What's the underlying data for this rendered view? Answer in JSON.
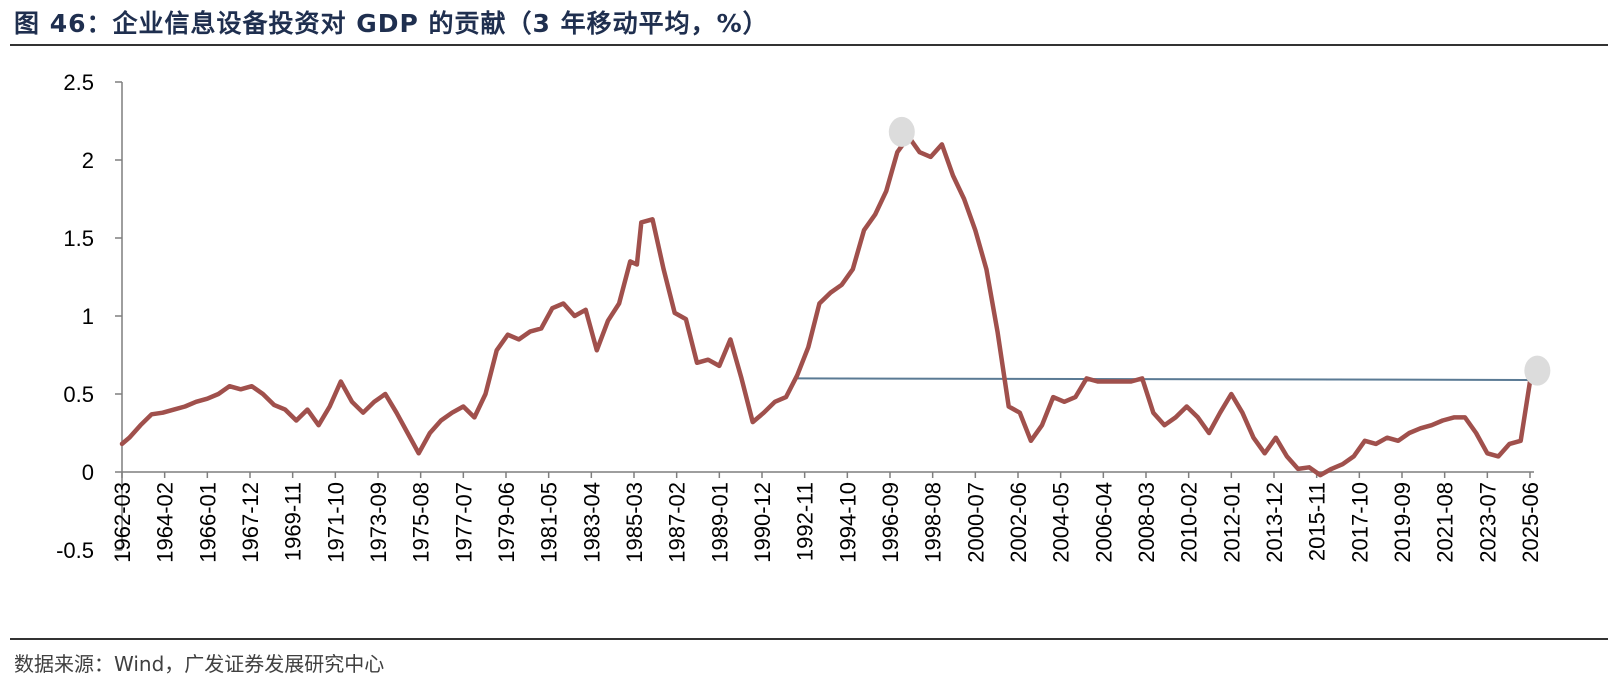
{
  "figure": {
    "title": "图 46：企业信息设备投资对 GDP 的贡献（3 年移动平均，%）",
    "source": "数据来源：Wind，广发证券发展研究中心"
  },
  "colors": {
    "series": "#a0504c",
    "reference_line": "#5a7a94",
    "marker": "#dcdcdc",
    "title": "#1f2f4f"
  },
  "chart_data": {
    "type": "line",
    "title": "企业信息设备投资对 GDP 的贡献（3 年移动平均，%）",
    "xlabel": "",
    "ylabel": "",
    "ylim": [
      -0.5,
      2.5
    ],
    "yticks": [
      "2.5",
      "2",
      "1.5",
      "1",
      "0.5",
      "0",
      "-0.5"
    ],
    "ytick_values": [
      2.5,
      2,
      1.5,
      1,
      0.5,
      0,
      -0.5
    ],
    "x_start": 1962.17,
    "x_end": 2025.42,
    "xticks": [
      "1962-03",
      "1964-02",
      "1966-01",
      "1967-12",
      "1969-11",
      "1971-10",
      "1973-09",
      "1975-08",
      "1977-07",
      "1979-06",
      "1981-05",
      "1983-04",
      "1985-03",
      "1987-02",
      "1989-01",
      "1990-12",
      "1992-11",
      "1994-10",
      "1996-09",
      "1998-08",
      "2000-07",
      "2002-06",
      "2004-05",
      "2006-04",
      "2008-03",
      "2010-02",
      "2012-01",
      "2013-12",
      "2015-11",
      "2017-10",
      "2019-09",
      "2021-08",
      "2023-07",
      "2025-06"
    ],
    "series": [
      {
        "name": "企业信息设备投资对GDP的贡献（3年移动平均）",
        "x": [
          1962.17,
          1962.5,
          1963.0,
          1963.5,
          1964.0,
          1964.5,
          1965.0,
          1965.5,
          1966.0,
          1966.5,
          1967.0,
          1967.5,
          1968.0,
          1968.5,
          1969.0,
          1969.5,
          1970.0,
          1970.5,
          1971.0,
          1971.5,
          1972.0,
          1972.5,
          1973.0,
          1973.5,
          1974.0,
          1974.5,
          1975.0,
          1975.5,
          1976.0,
          1976.5,
          1977.0,
          1977.5,
          1978.0,
          1978.5,
          1979.0,
          1979.5,
          1980.0,
          1980.5,
          1981.0,
          1981.5,
          1982.0,
          1982.5,
          1983.0,
          1983.5,
          1984.0,
          1984.5,
          1985.0,
          1985.3,
          1985.5,
          1986.0,
          1986.5,
          1987.0,
          1987.5,
          1988.0,
          1988.5,
          1989.0,
          1989.5,
          1990.0,
          1990.5,
          1991.0,
          1991.5,
          1992.0,
          1992.5,
          1993.0,
          1993.5,
          1994.0,
          1994.5,
          1995.0,
          1995.5,
          1996.0,
          1996.5,
          1997.0,
          1997.5,
          1998.0,
          1998.5,
          1999.0,
          1999.5,
          2000.0,
          2000.5,
          2001.0,
          2001.5,
          2002.0,
          2002.5,
          2003.0,
          2003.5,
          2004.0,
          2004.5,
          2005.0,
          2005.5,
          2006.0,
          2006.5,
          2007.0,
          2007.5,
          2008.0,
          2008.5,
          2009.0,
          2009.5,
          2010.0,
          2010.5,
          2011.0,
          2011.5,
          2012.0,
          2012.5,
          2013.0,
          2013.5,
          2014.0,
          2014.5,
          2015.0,
          2015.5,
          2016.0,
          2016.5,
          2017.0,
          2017.5,
          2018.0,
          2018.5,
          2019.0,
          2019.5,
          2020.0,
          2020.5,
          2021.0,
          2021.5,
          2022.0,
          2022.5,
          2023.0,
          2023.5,
          2024.0,
          2024.5,
          2025.0,
          2025.42
        ],
        "values": [
          0.18,
          0.22,
          0.3,
          0.37,
          0.38,
          0.4,
          0.42,
          0.45,
          0.47,
          0.5,
          0.55,
          0.53,
          0.55,
          0.5,
          0.43,
          0.4,
          0.33,
          0.4,
          0.3,
          0.42,
          0.58,
          0.45,
          0.38,
          0.45,
          0.5,
          0.38,
          0.25,
          0.12,
          0.25,
          0.33,
          0.38,
          0.42,
          0.35,
          0.5,
          0.78,
          0.88,
          0.85,
          0.9,
          0.92,
          1.05,
          1.08,
          1.0,
          1.04,
          0.78,
          0.97,
          1.08,
          1.35,
          1.33,
          1.6,
          1.62,
          1.3,
          1.02,
          0.98,
          0.7,
          0.72,
          0.68,
          0.85,
          0.6,
          0.32,
          0.38,
          0.45,
          0.48,
          0.62,
          0.8,
          1.08,
          1.15,
          1.2,
          1.3,
          1.55,
          1.65,
          1.8,
          2.05,
          2.15,
          2.05,
          2.02,
          2.1,
          1.9,
          1.75,
          1.55,
          1.3,
          0.9,
          0.42,
          0.38,
          0.2,
          0.3,
          0.48,
          0.45,
          0.48,
          0.6,
          0.58,
          0.58,
          0.58,
          0.58,
          0.6,
          0.38,
          0.3,
          0.35,
          0.42,
          0.35,
          0.25,
          0.38,
          0.5,
          0.38,
          0.22,
          0.12,
          0.22,
          0.1,
          0.02,
          0.03,
          -0.02,
          0.02,
          0.05,
          0.1,
          0.2,
          0.18,
          0.22,
          0.2,
          0.25,
          0.28,
          0.3,
          0.33,
          0.35,
          0.35,
          0.25,
          0.12,
          0.1,
          0.18,
          0.2,
          0.58
        ]
      },
      {
        "name": "reference level",
        "x": [
          1992.5,
          2025.42
        ],
        "values": [
          0.6,
          0.59
        ]
      }
    ],
    "markers": [
      {
        "x": 1997.2,
        "y": 2.18
      },
      {
        "x": 2025.75,
        "y": 0.65
      }
    ]
  }
}
